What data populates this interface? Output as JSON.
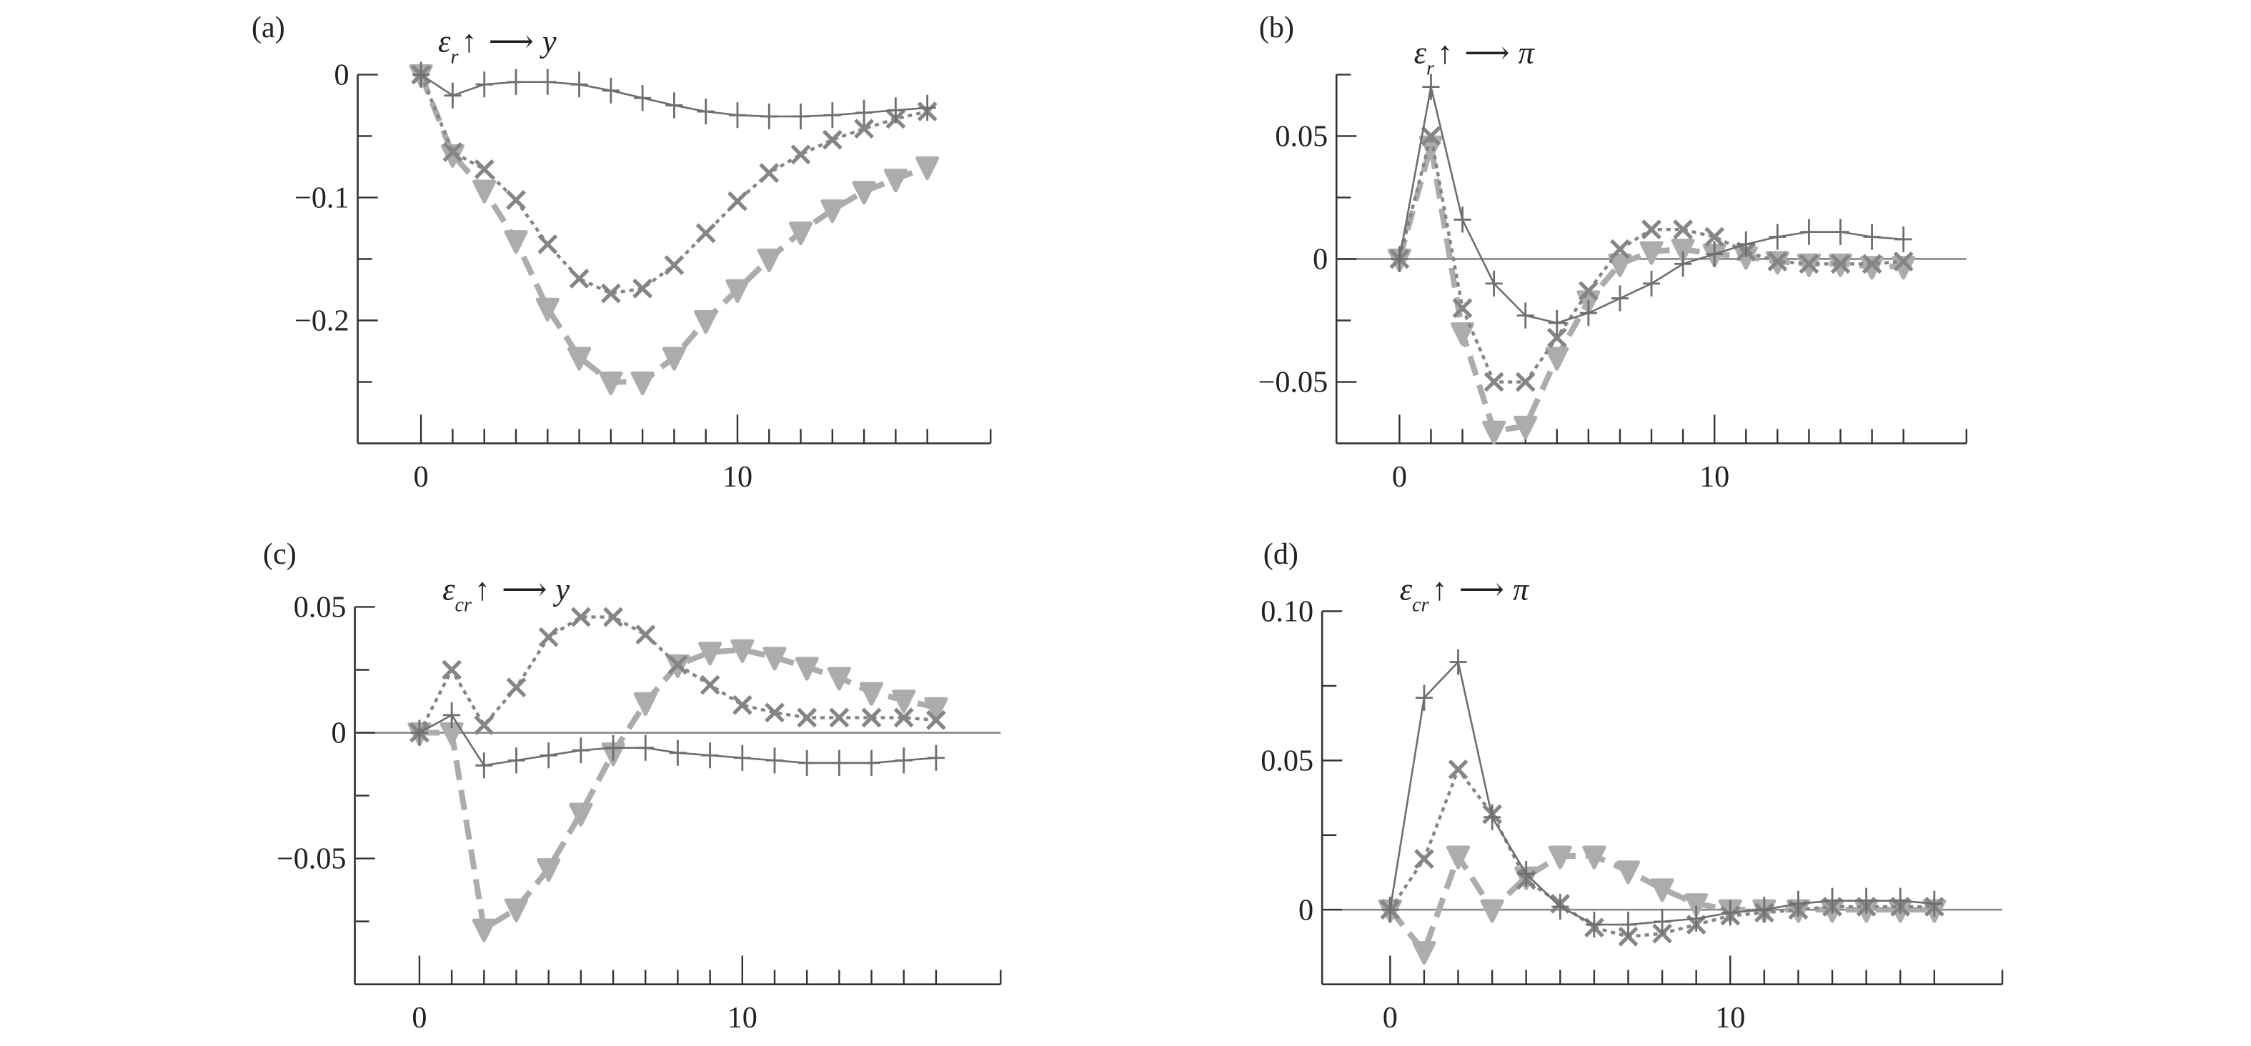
{
  "chart_data": [
    {
      "panel_label": "(a)",
      "type": "line",
      "title": {
        "main": "ε",
        "sub": "r",
        "arrow_up": "↑",
        "arrow_right": "⟶",
        "target": "y"
      },
      "x": [
        0,
        1,
        2,
        3,
        4,
        5,
        6,
        7,
        8,
        9,
        10,
        11,
        12,
        13,
        14,
        15,
        16
      ],
      "xlim": [
        -2,
        18
      ],
      "ylim": [
        -0.3,
        0.0
      ],
      "xticks": [
        0,
        10
      ],
      "xtick_labels": [
        "0",
        "10"
      ],
      "yticks": [
        0,
        -0.1,
        -0.2
      ],
      "ytick_labels": [
        "0",
        "−0.1",
        "−0.2"
      ],
      "yminor_step": 0.05,
      "zero_line": false,
      "series": [
        {
          "marker": "plus",
          "style": "solid-thin",
          "color": "#6e6e6e",
          "values": [
            0,
            -0.017,
            -0.008,
            -0.006,
            -0.006,
            -0.008,
            -0.013,
            -0.019,
            -0.025,
            -0.03,
            -0.033,
            -0.034,
            -0.034,
            -0.033,
            -0.031,
            -0.029,
            -0.027
          ]
        },
        {
          "marker": "cross",
          "style": "dotted",
          "color": "#858585",
          "values": [
            0,
            -0.063,
            -0.077,
            -0.102,
            -0.138,
            -0.166,
            -0.178,
            -0.174,
            -0.155,
            -0.129,
            -0.103,
            -0.08,
            -0.065,
            -0.053,
            -0.044,
            -0.036,
            -0.03
          ]
        },
        {
          "marker": "triangle-down",
          "style": "dashed-thick",
          "color": "#acacac",
          "values": [
            0,
            -0.065,
            -0.094,
            -0.135,
            -0.19,
            -0.23,
            -0.25,
            -0.25,
            -0.23,
            -0.2,
            -0.175,
            -0.15,
            -0.128,
            -0.11,
            -0.095,
            -0.085,
            -0.075
          ]
        }
      ]
    },
    {
      "panel_label": "(b)",
      "type": "line",
      "title": {
        "main": "ε",
        "sub": "r",
        "arrow_up": "↑",
        "arrow_right": "⟶",
        "target": "π"
      },
      "x": [
        0,
        1,
        2,
        3,
        4,
        5,
        6,
        7,
        8,
        9,
        10,
        11,
        12,
        13,
        14,
        15,
        16
      ],
      "xlim": [
        -2,
        18
      ],
      "ylim": [
        -0.075,
        0.075
      ],
      "xticks": [
        0,
        10
      ],
      "xtick_labels": [
        "0",
        "10"
      ],
      "yticks": [
        0.05,
        0,
        -0.05
      ],
      "ytick_labels": [
        "0.05",
        "0",
        "−0.05"
      ],
      "yminor_step": 0.025,
      "zero_line": true,
      "series": [
        {
          "marker": "plus",
          "style": "solid-thin",
          "color": "#6e6e6e",
          "values": [
            0,
            0.07,
            0.016,
            -0.01,
            -0.023,
            -0.026,
            -0.022,
            -0.016,
            -0.01,
            -0.002,
            0.002,
            0.006,
            0.009,
            0.011,
            0.011,
            0.009,
            0.008
          ]
        },
        {
          "marker": "cross",
          "style": "dotted",
          "color": "#858585",
          "values": [
            0,
            0.05,
            -0.02,
            -0.05,
            -0.05,
            -0.032,
            -0.013,
            0.004,
            0.012,
            0.012,
            0.009,
            0.003,
            -0.001,
            -0.002,
            -0.002,
            -0.002,
            -0.001
          ]
        },
        {
          "marker": "triangle-down",
          "style": "dashed-thick",
          "color": "#acacac",
          "values": [
            0,
            0.046,
            -0.03,
            -0.07,
            -0.068,
            -0.04,
            -0.017,
            -0.002,
            0.003,
            0.004,
            0.002,
            0.001,
            -0.001,
            -0.002,
            -0.002,
            -0.003,
            -0.003
          ]
        }
      ]
    },
    {
      "panel_label": "(c)",
      "type": "line",
      "title": {
        "main": "ε",
        "sub": "cr",
        "arrow_up": "↑",
        "arrow_right": "⟶",
        "target": "y"
      },
      "x": [
        0,
        1,
        2,
        3,
        4,
        5,
        6,
        7,
        8,
        9,
        10,
        11,
        12,
        13,
        14,
        15,
        16
      ],
      "xlim": [
        -2,
        18
      ],
      "ylim": [
        -0.1,
        0.05
      ],
      "xticks": [
        0,
        10
      ],
      "xtick_labels": [
        "0",
        "10"
      ],
      "yticks": [
        0.05,
        0,
        -0.05
      ],
      "ytick_labels": [
        "0.05",
        "0",
        "−0.05"
      ],
      "yminor_step": 0.025,
      "zero_line": true,
      "series": [
        {
          "marker": "plus",
          "style": "solid-thin",
          "color": "#6e6e6e",
          "values": [
            0,
            0.007,
            -0.013,
            -0.011,
            -0.009,
            -0.007,
            -0.006,
            -0.006,
            -0.008,
            -0.009,
            -0.01,
            -0.011,
            -0.012,
            -0.012,
            -0.012,
            -0.011,
            -0.01
          ]
        },
        {
          "marker": "cross",
          "style": "dotted",
          "color": "#858585",
          "values": [
            0,
            0.025,
            0.003,
            0.018,
            0.038,
            0.046,
            0.046,
            0.039,
            0.027,
            0.019,
            0.011,
            0.008,
            0.006,
            0.006,
            0.006,
            0.006,
            0.005
          ]
        },
        {
          "marker": "triangle-down",
          "style": "dashed-thick",
          "color": "#acacac",
          "values": [
            0,
            0,
            -0.078,
            -0.07,
            -0.054,
            -0.032,
            -0.008,
            0.012,
            0.027,
            0.032,
            0.033,
            0.03,
            0.026,
            0.022,
            0.016,
            0.013,
            0.01
          ]
        }
      ]
    },
    {
      "panel_label": "(d)",
      "type": "line",
      "title": {
        "main": "ε",
        "sub": "cr",
        "arrow_up": "↑",
        "arrow_right": "⟶",
        "target": "π"
      },
      "x": [
        0,
        1,
        2,
        3,
        4,
        5,
        6,
        7,
        8,
        9,
        10,
        11,
        12,
        13,
        14,
        15,
        16
      ],
      "xlim": [
        -2,
        18
      ],
      "ylim": [
        -0.025,
        0.1
      ],
      "xticks": [
        0,
        10
      ],
      "xtick_labels": [
        "0",
        "10"
      ],
      "yticks": [
        0.1,
        0.05,
        0
      ],
      "ytick_labels": [
        "0.10",
        "0.05",
        "0"
      ],
      "yminor_step": 0.025,
      "zero_line": true,
      "series": [
        {
          "marker": "plus",
          "style": "solid-thin",
          "color": "#6e6e6e",
          "values": [
            0,
            0.071,
            0.083,
            0.031,
            0.012,
            0.001,
            -0.005,
            -0.005,
            -0.004,
            -0.003,
            -0.001,
            0,
            0.002,
            0.003,
            0.003,
            0.003,
            0.002
          ]
        },
        {
          "marker": "cross",
          "style": "dotted",
          "color": "#858585",
          "values": [
            0,
            0.017,
            0.047,
            0.032,
            0.01,
            0.002,
            -0.006,
            -0.009,
            -0.008,
            -0.005,
            -0.002,
            -0.001,
            0,
            0.001,
            0.001,
            0.001,
            0.001
          ]
        },
        {
          "marker": "triangle-down",
          "style": "dashed-thick",
          "color": "#acacac",
          "values": [
            0,
            -0.014,
            0.018,
            0,
            0.011,
            0.018,
            0.018,
            0.013,
            0.007,
            0.002,
            0,
            0,
            0,
            0,
            0,
            0,
            0
          ]
        }
      ]
    }
  ]
}
